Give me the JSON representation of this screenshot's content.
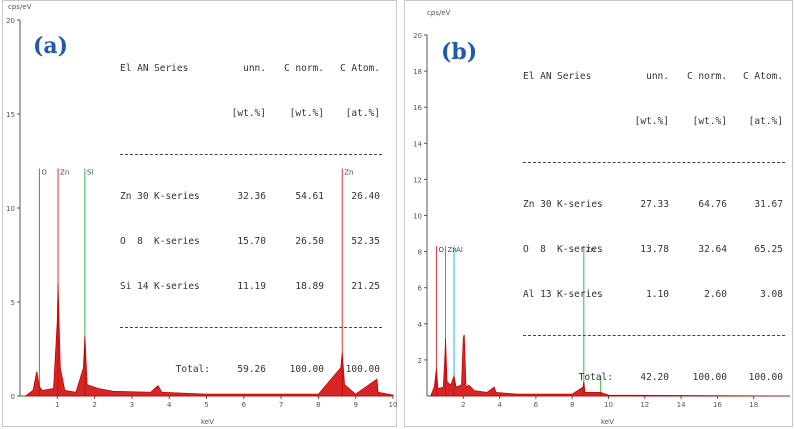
{
  "panels": [
    {
      "label": "(a)",
      "y_unit": "cps/eV",
      "x_unit": "keV",
      "table": {
        "headers": [
          "El AN",
          "Series",
          "unn.",
          "C norm.",
          "C Atom."
        ],
        "subheaders": [
          "",
          "",
          "[wt.%]",
          "[wt.%]",
          "[at.%]"
        ],
        "rows": [
          [
            "Zn 30",
            "K-series",
            "32.36",
            "54.61",
            "26.40"
          ],
          [
            "O  8",
            "K-series",
            "15.70",
            "26.50",
            "52.35"
          ],
          [
            "Si 14",
            "K-series",
            "11.19",
            "18.89",
            "21.25"
          ]
        ],
        "total": [
          "Total:",
          "59.26",
          "100.00",
          "100.00"
        ]
      }
    },
    {
      "label": "(b)",
      "y_unit": "cps/eV",
      "x_unit": "keV",
      "table": {
        "headers": [
          "El AN",
          "Series",
          "unn.",
          "C norm.",
          "C Atom."
        ],
        "subheaders": [
          "",
          "",
          "[wt.%]",
          "[wt.%]",
          "[at.%]"
        ],
        "rows": [
          [
            "Zn 30",
            "K-series",
            "27.33",
            "64.76",
            "31.67"
          ],
          [
            "O  8",
            "K-series",
            "13.78",
            "32.64",
            "65.25"
          ],
          [
            "Al 13",
            "K-series",
            "1.10",
            "2.60",
            "3.08"
          ]
        ],
        "total": [
          "Total:",
          "42.20",
          "100.00",
          "100.00"
        ]
      }
    }
  ],
  "chart_data": [
    {
      "type": "line",
      "title": "(a)",
      "ylabel": "cps/eV",
      "xlabel": "keV",
      "xlim": [
        0,
        10
      ],
      "ylim": [
        0,
        20
      ],
      "xticks": [
        1,
        2,
        3,
        4,
        5,
        6,
        7,
        8,
        9,
        10
      ],
      "yticks": [
        0,
        5,
        10,
        15,
        20
      ],
      "ytick_labels": [
        "0",
        "5",
        "10",
        "15",
        "20"
      ],
      "spectrum_color": "#cc0000",
      "spectrum": [
        [
          0.15,
          0
        ],
        [
          0.35,
          0.3
        ],
        [
          0.45,
          1.3
        ],
        [
          0.52,
          0.5
        ],
        [
          0.6,
          0.3
        ],
        [
          0.9,
          0.4
        ],
        [
          1.0,
          4
        ],
        [
          1.02,
          6
        ],
        [
          1.08,
          1.5
        ],
        [
          1.2,
          0.3
        ],
        [
          1.5,
          0.2
        ],
        [
          1.7,
          1.5
        ],
        [
          1.74,
          3.2
        ],
        [
          1.8,
          0.6
        ],
        [
          2.1,
          0.4
        ],
        [
          2.5,
          0.25
        ],
        [
          3.5,
          0.2
        ],
        [
          3.7,
          0.55
        ],
        [
          3.8,
          0.2
        ],
        [
          5,
          0.1
        ],
        [
          8.0,
          0.1
        ],
        [
          8.6,
          1.5
        ],
        [
          8.64,
          2.3
        ],
        [
          8.7,
          0.6
        ],
        [
          9.0,
          0.1
        ],
        [
          9.57,
          0.9
        ],
        [
          9.6,
          0.2
        ],
        [
          10,
          0.05
        ]
      ],
      "element_markers": [
        {
          "name": "O",
          "x": 0.52,
          "height": 12.1,
          "color": "#6666dd"
        },
        {
          "name": "Zn",
          "x": 1.02,
          "height": 12.1,
          "color": "#dd3333"
        },
        {
          "name": "Si",
          "x": 1.74,
          "height": 12.1,
          "color": "#33bb33"
        },
        {
          "name": "Zn",
          "x": 8.64,
          "height": 12.1,
          "color": "#dd3333"
        }
      ]
    },
    {
      "type": "line",
      "title": "(b)",
      "ylabel": "cps/eV",
      "xlabel": "keV",
      "xlim": [
        0,
        20
      ],
      "ylim": [
        0,
        20
      ],
      "xticks": [
        2,
        4,
        6,
        8,
        10,
        12,
        14,
        16,
        18
      ],
      "yticks": [
        2,
        4,
        6,
        8,
        10,
        12,
        14,
        16,
        18,
        20
      ],
      "ytick_labels": [
        "2",
        "4",
        "6",
        "8",
        "10",
        "12",
        "14",
        "16",
        "18",
        "20"
      ],
      "spectrum_color": "#cc0000",
      "spectrum": [
        [
          0.2,
          0
        ],
        [
          0.4,
          0.5
        ],
        [
          0.52,
          1.5
        ],
        [
          0.6,
          0.4
        ],
        [
          0.9,
          0.5
        ],
        [
          1.0,
          2.5
        ],
        [
          1.02,
          3.2
        ],
        [
          1.1,
          0.8
        ],
        [
          1.3,
          0.6
        ],
        [
          1.49,
          1.1
        ],
        [
          1.6,
          0.5
        ],
        [
          1.9,
          0.6
        ],
        [
          2.0,
          3.2
        ],
        [
          2.05,
          3.4
        ],
        [
          2.15,
          0.5
        ],
        [
          2.3,
          0.6
        ],
        [
          2.6,
          0.3
        ],
        [
          3.3,
          0.2
        ],
        [
          3.7,
          0.5
        ],
        [
          3.8,
          0.2
        ],
        [
          5,
          0.1
        ],
        [
          8.0,
          0.1
        ],
        [
          8.6,
          0.5
        ],
        [
          8.64,
          0.8
        ],
        [
          8.7,
          0.2
        ],
        [
          9.57,
          0.2
        ],
        [
          10,
          0.05
        ],
        [
          20,
          0
        ]
      ],
      "element_markers": [
        {
          "name": "O",
          "x": 0.52,
          "height": 8.3,
          "color": "#dd3333"
        },
        {
          "name": "Zn",
          "x": 1.02,
          "height": 8.3,
          "color": "#33bb33"
        },
        {
          "name": "Al",
          "x": 1.49,
          "height": 8.3,
          "color": "#22bbcc"
        },
        {
          "name": "Zn",
          "x": 8.64,
          "height": 8.3,
          "color": "#33bb33"
        }
      ],
      "extra_lines": [
        {
          "x": 9.57,
          "height": 1.1,
          "color": "#33bb33"
        }
      ]
    }
  ]
}
